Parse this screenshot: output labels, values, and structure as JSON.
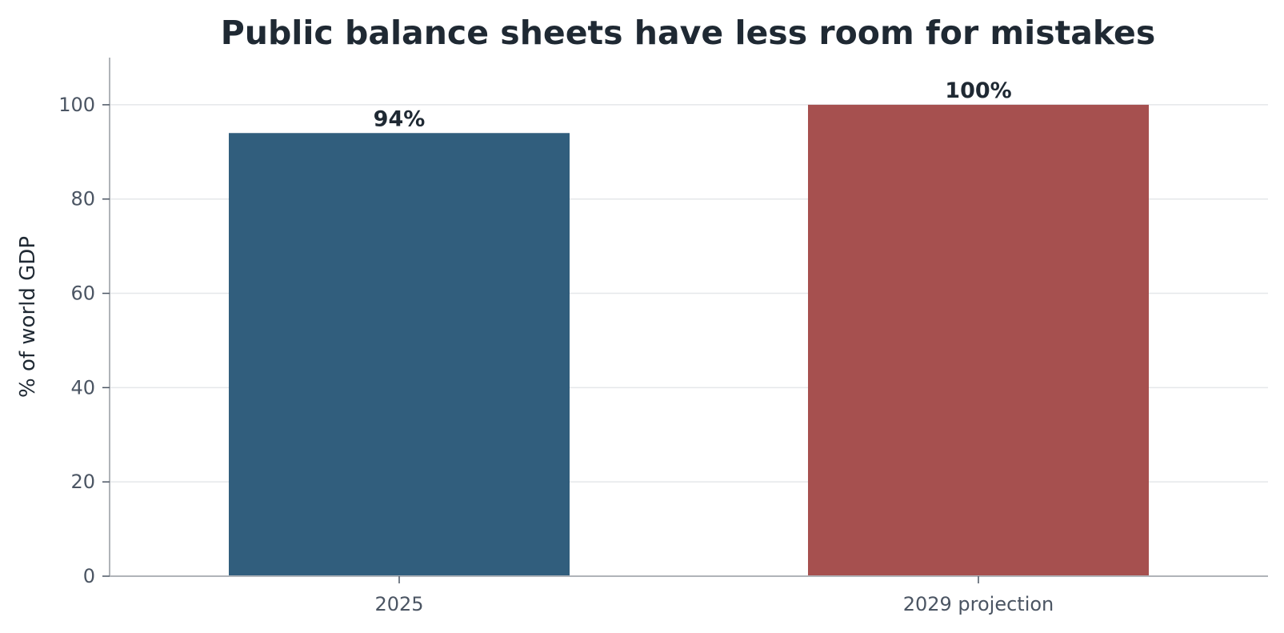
{
  "chart_data": {
    "type": "bar",
    "title": "Public balance sheets have less room for mistakes",
    "xlabel": "",
    "ylabel": "% of world GDP",
    "categories": [
      "2025",
      "2029 projection"
    ],
    "values": [
      94,
      100
    ],
    "data_labels": [
      "94%",
      "100%"
    ],
    "bar_colors": [
      "#315e7d",
      "#a6504f"
    ],
    "ylim": [
      0,
      110
    ],
    "yticks": [
      0,
      20,
      40,
      60,
      80,
      100
    ],
    "ytick_labels": [
      "0",
      "20",
      "40",
      "60",
      "80",
      "100"
    ],
    "grid": "horizontal",
    "legend": "none"
  },
  "colors": {
    "text_dark": "#1f2933",
    "text_tick": "#4b5563",
    "axis": "#b0b4b9",
    "grid": "#e5e7ea"
  }
}
